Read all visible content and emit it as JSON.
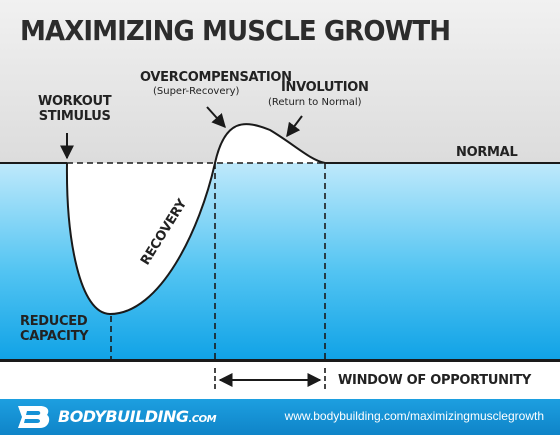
{
  "title": "MAXIMIZING MUSCLE GROWTH",
  "labels": {
    "workout_stimulus": "WORKOUT",
    "workout_stimulus_2": "STIMULUS",
    "overcompensation": "OVERCOMPENSATION",
    "overcompensation_sub": "(Super-Recovery)",
    "involution": "INVOLUTION",
    "involution_sub": "(Return to Normal)",
    "normal": "NORMAL",
    "recovery": "RECOVERY",
    "reduced_capacity": "REDUCED",
    "reduced_capacity_2": "CAPACITY",
    "window": "WINDOW OF OPPORTUNITY"
  },
  "footer": {
    "brand": "BODYBUILDING",
    "brand_suffix": ".COM",
    "url": "www.bodybuilding.com/maximizingmusclegrowth"
  },
  "colors": {
    "background_top": "#e6e6e6",
    "blue_light": "#bfe9fb",
    "blue_dark": "#0fa2e6",
    "footer_blue": "#1592d6",
    "curve_fill": "#ffffff",
    "stroke": "#1a1a1a"
  },
  "icons": {
    "logo": "bodybuilding-bb-logo-icon",
    "arrows": "pointer-arrow-icon"
  }
}
